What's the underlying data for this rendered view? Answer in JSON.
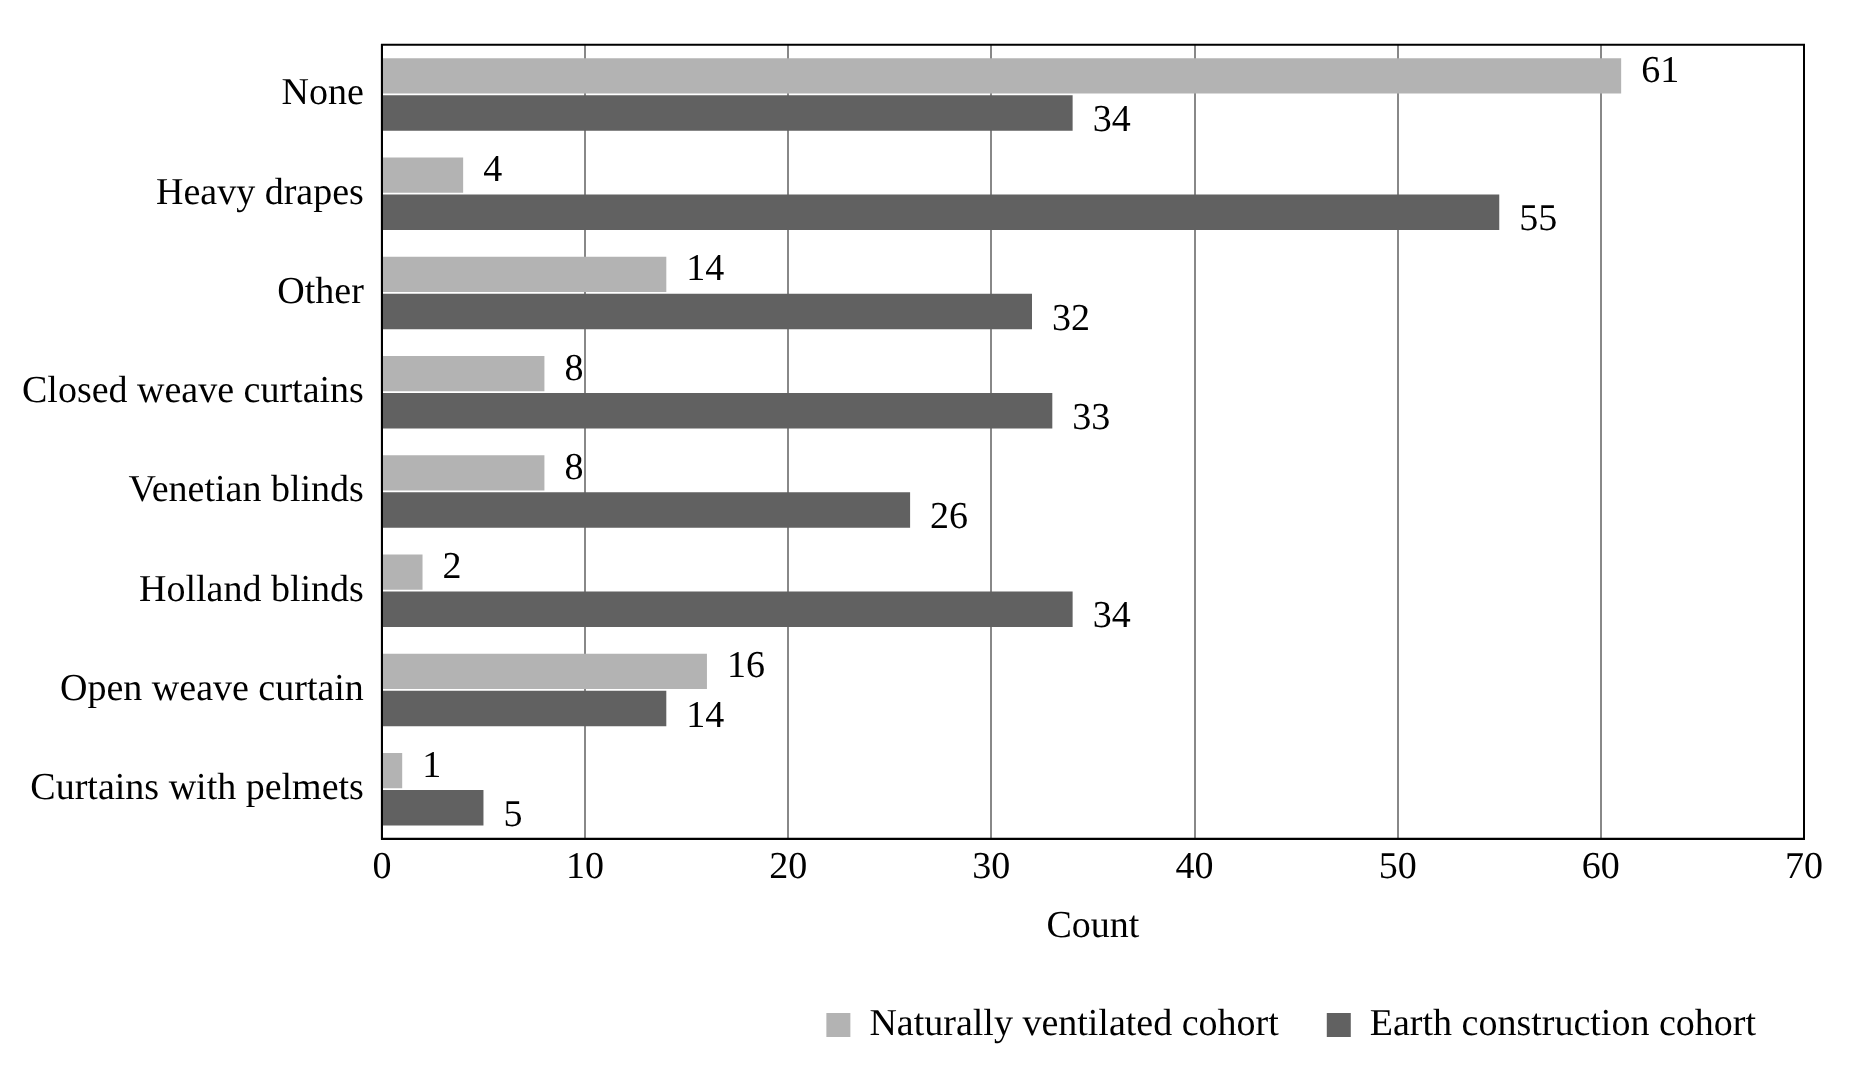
{
  "chart_data": {
    "type": "bar",
    "orientation": "horizontal",
    "xlabel": "Count",
    "categories": [
      "None",
      "Heavy drapes",
      "Other",
      "Closed weave curtains",
      "Venetian blinds",
      "Holland blinds",
      "Open weave curtain",
      "Curtains with pelmets"
    ],
    "series": [
      {
        "name": "Naturally ventilated cohort",
        "color": "#b3b3b3",
        "values": [
          61,
          4,
          14,
          8,
          8,
          2,
          16,
          1
        ]
      },
      {
        "name": "Earth construction cohort",
        "color": "#616161",
        "values": [
          34,
          55,
          32,
          33,
          26,
          34,
          14,
          5
        ]
      }
    ],
    "xlim": [
      0,
      70
    ],
    "xticks": [
      0,
      10,
      20,
      30,
      40,
      50,
      60,
      70
    ],
    "grid": "x",
    "legend": "bottom",
    "data_labels": true
  }
}
